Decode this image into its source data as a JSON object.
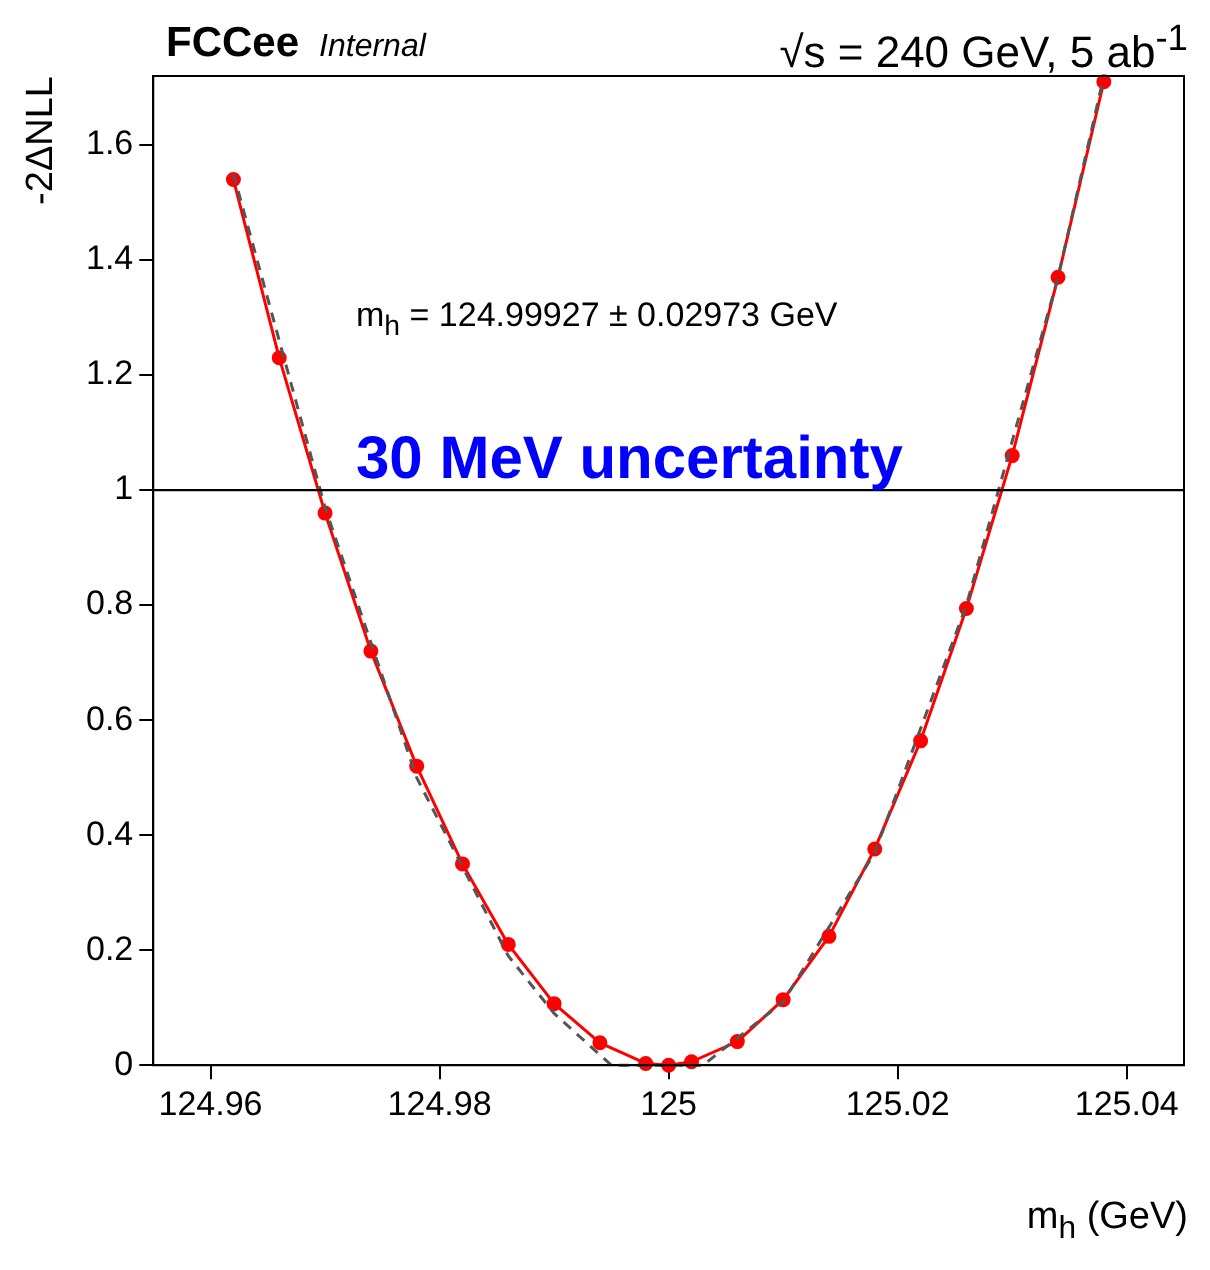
{
  "chart_data": {
    "type": "line",
    "title": "FCCee",
    "subtitle": "Internal",
    "xlabel": "m$_{h}$ (GeV)",
    "ylabel": "-2ΔNLL",
    "annotations": [
      "√s = 240 GeV, 5 ab$^{-1}$",
      "m$_{h}$ = 124.99927 ± 0.02973 GeV",
      "30 MeV uncertainty"
    ],
    "series": [
      {
        "color": "#555555",
        "line_style": "dashed",
        "marker": "none",
        "x": [
          124.962,
          124.97,
          124.978,
          124.986,
          124.99,
          124.995,
          125.003,
          125.01,
          125.018,
          125.026,
          125.034,
          125.038
        ],
        "values": [
          1.55,
          0.97,
          0.5,
          0.19,
          0.09,
          0,
          0,
          0.11,
          0.37,
          0.8,
          1.37,
          1.72
        ]
      },
      {
        "color": "#ff0000",
        "line_style": "solid",
        "marker": "circle",
        "x": [
          124.962,
          124.966,
          124.97,
          124.974,
          124.978,
          124.982,
          124.986,
          124.99,
          124.994,
          124.998,
          125.0,
          125.002,
          125.006,
          125.01,
          125.014,
          125.018,
          125.022,
          125.026,
          125.03,
          125.034,
          125.038
        ],
        "values": [
          1.54,
          1.23,
          0.96,
          0.72,
          0.52,
          0.35,
          0.21,
          0.107,
          0.039,
          0.003,
          0,
          0.006,
          0.041,
          0.114,
          0.224,
          0.376,
          0.564,
          0.794,
          1.06,
          1.37,
          1.71
        ]
      }
    ],
    "xlim": [
      124.955,
      125.045
    ],
    "xticks": [
      124.96,
      124.98,
      125,
      125.02,
      125.04
    ],
    "ylim": [
      0,
      1.72
    ],
    "yticks": [
      0,
      0.2,
      0.4,
      0.6,
      0.8,
      1,
      1.2,
      1.4,
      1.6
    ],
    "ref_lines": [
      {
        "axis": "y",
        "value": 1,
        "color": "#000000"
      }
    ],
    "grid": false,
    "legend": false
  }
}
